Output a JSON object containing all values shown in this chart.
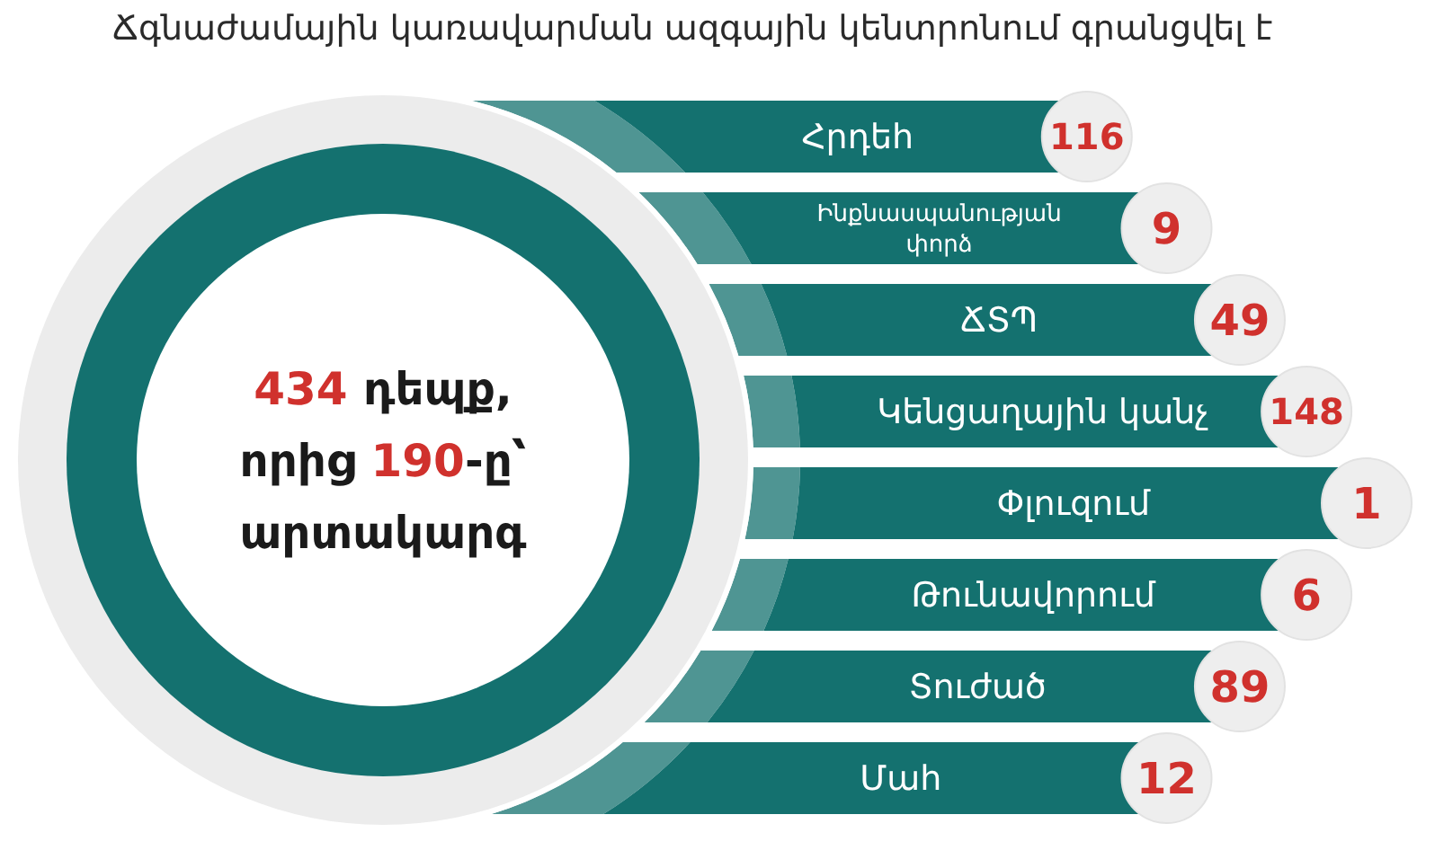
{
  "chart_data": {
    "type": "other",
    "title": "Ճգնաժամային կառավարման ազգային կենտրոնում գրանցվել է",
    "categories": [
      "Հրդեհ",
      "Ինքնասպանության փորձ",
      "ՃՏՊ",
      "Կենցաղային կանչ",
      "Փլուզում",
      "Թունավորում",
      "Տուժած",
      "Մահ"
    ],
    "values": [
      116,
      9,
      49,
      148,
      1,
      6,
      89,
      12
    ],
    "data_labels": true,
    "annotations": [
      "434 դեպք, որից 190-ը՝ արտակարգ"
    ]
  }
}
